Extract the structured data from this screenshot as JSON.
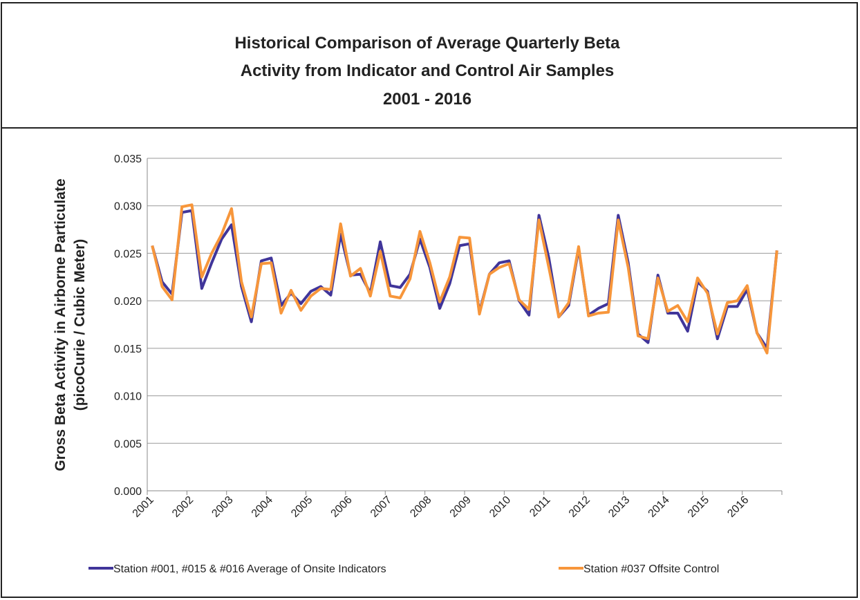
{
  "chart_data": {
    "type": "line",
    "title": [
      "Historical Comparison of Average Quarterly Beta",
      "Activity from Indicator and Control Air Samples",
      "2001 - 2016"
    ],
    "y_label": [
      "Gross Beta Activity in Airborne Particulate",
      "(picoCurie / Cubic Meter)"
    ],
    "categories": [
      "2001",
      null,
      null,
      null,
      "2002",
      null,
      null,
      null,
      "2003",
      null,
      null,
      null,
      "2004",
      null,
      null,
      null,
      "2005",
      null,
      null,
      null,
      "2006",
      null,
      null,
      null,
      "2007",
      null,
      null,
      null,
      "2008",
      null,
      null,
      null,
      "2009",
      null,
      null,
      null,
      "2010",
      null,
      null,
      null,
      "2011",
      null,
      null,
      null,
      "2012",
      null,
      null,
      null,
      "2013",
      null,
      null,
      null,
      "2014",
      null,
      null,
      null,
      "2015",
      null,
      null,
      null,
      "2016",
      null,
      null,
      null
    ],
    "series": [
      {
        "name": "Station #001, #015 & #016 Average of Onsite Indicators",
        "color": "#40359a",
        "values": [
          0.0258,
          0.022,
          0.0207,
          0.0293,
          0.0295,
          0.0213,
          0.024,
          0.0265,
          0.028,
          0.0215,
          0.0178,
          0.0242,
          0.0245,
          0.0195,
          0.0208,
          0.0197,
          0.021,
          0.0215,
          0.0206,
          0.027,
          0.0227,
          0.0228,
          0.0208,
          0.0262,
          0.0216,
          0.0214,
          0.0228,
          0.0265,
          0.0235,
          0.0192,
          0.0218,
          0.0258,
          0.026,
          0.0188,
          0.0228,
          0.024,
          0.0242,
          0.02,
          0.0185,
          0.029,
          0.0245,
          0.0183,
          0.0195,
          0.0255,
          0.0185,
          0.0192,
          0.0197,
          0.029,
          0.024,
          0.0165,
          0.0156,
          0.0227,
          0.0187,
          0.0187,
          0.0168,
          0.022,
          0.021,
          0.016,
          0.0194,
          0.0194,
          0.0212,
          0.0166,
          0.015,
          0.0253
        ]
      },
      {
        "name": "Station #037 Offsite Control",
        "color": "#f7963b",
        "values": [
          0.0258,
          0.0215,
          0.0201,
          0.0299,
          0.0301,
          0.0225,
          0.025,
          0.027,
          0.0297,
          0.022,
          0.0183,
          0.0239,
          0.024,
          0.0187,
          0.0211,
          0.019,
          0.0205,
          0.0213,
          0.0212,
          0.0281,
          0.0226,
          0.0234,
          0.0205,
          0.0252,
          0.0205,
          0.0203,
          0.0223,
          0.0273,
          0.024,
          0.0199,
          0.0225,
          0.0267,
          0.0266,
          0.0186,
          0.0228,
          0.0235,
          0.0239,
          0.0201,
          0.0191,
          0.0285,
          0.0235,
          0.0183,
          0.0198,
          0.0257,
          0.0184,
          0.0187,
          0.0188,
          0.0285,
          0.0235,
          0.0163,
          0.016,
          0.0224,
          0.0189,
          0.0195,
          0.0178,
          0.0224,
          0.0208,
          0.0165,
          0.0198,
          0.02,
          0.0216,
          0.0166,
          0.0145,
          0.0253
        ]
      }
    ],
    "ylim": [
      0,
      0.035
    ],
    "yticks": [
      {
        "value": 0,
        "label": "0.000"
      },
      {
        "value": 0.005,
        "label": "0.005"
      },
      {
        "value": 0.01,
        "label": "0.010"
      },
      {
        "value": 0.015,
        "label": "0.015"
      },
      {
        "value": 0.02,
        "label": "0.020"
      },
      {
        "value": 0.025,
        "label": "0.025"
      },
      {
        "value": 0.03,
        "label": "0.030"
      },
      {
        "value": 0.035,
        "label": "0.035"
      }
    ],
    "grid": true,
    "legend": "bottom"
  }
}
